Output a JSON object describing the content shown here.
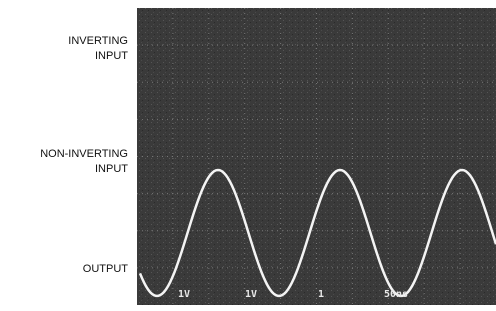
{
  "labels": {
    "inverting": [
      "INVERTING",
      "INPUT"
    ],
    "non_inverting": [
      "NON-INVERTING",
      "INPUT"
    ],
    "output": "OUTPUT"
  },
  "readouts": [
    "1V",
    "1V",
    "1",
    "50ns"
  ]
}
